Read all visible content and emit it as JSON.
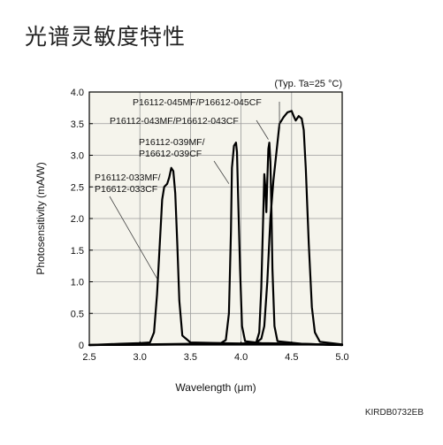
{
  "page": {
    "title": "光谱灵敏度特性",
    "doc_code": "KIRDB0732EB"
  },
  "chart_data": {
    "type": "line",
    "title": "",
    "note": "(Typ. Ta=25 °C)",
    "xlabel": "Wavelength (μm)",
    "ylabel": "Photosensitivity (mA/W)",
    "xlim": [
      2.5,
      5.0
    ],
    "ylim": [
      0,
      4.0
    ],
    "x_ticks": [
      "2.5",
      "3.0",
      "3.5",
      "4.0",
      "4.5",
      "5.0"
    ],
    "y_ticks": [
      "0",
      "0.5",
      "1.0",
      "1.5",
      "2.0",
      "2.5",
      "3.0",
      "3.5",
      "4.0"
    ],
    "grid": true,
    "plot_background": "#f5f4ec",
    "line_color": "#000000",
    "series": [
      {
        "label_lines": [
          "P16112-033MF/",
          "P16612-033CF"
        ],
        "points": [
          [
            2.5,
            0.0
          ],
          [
            2.8,
            0.02
          ],
          [
            3.0,
            0.03
          ],
          [
            3.1,
            0.04
          ],
          [
            3.14,
            0.2
          ],
          [
            3.17,
            0.8
          ],
          [
            3.2,
            1.7
          ],
          [
            3.22,
            2.3
          ],
          [
            3.24,
            2.5
          ],
          [
            3.27,
            2.55
          ],
          [
            3.29,
            2.65
          ],
          [
            3.31,
            2.8
          ],
          [
            3.33,
            2.75
          ],
          [
            3.35,
            2.4
          ],
          [
            3.37,
            1.6
          ],
          [
            3.39,
            0.7
          ],
          [
            3.42,
            0.15
          ],
          [
            3.5,
            0.04
          ],
          [
            3.8,
            0.03
          ],
          [
            4.2,
            0.02
          ],
          [
            4.6,
            0.01
          ],
          [
            5.0,
            0.0
          ]
        ]
      },
      {
        "label_lines": [
          "P16112-039MF/",
          "P16612-039CF"
        ],
        "points": [
          [
            2.5,
            0.0
          ],
          [
            3.0,
            0.01
          ],
          [
            3.5,
            0.02
          ],
          [
            3.8,
            0.03
          ],
          [
            3.85,
            0.08
          ],
          [
            3.88,
            0.5
          ],
          [
            3.9,
            1.8
          ],
          [
            3.91,
            2.8
          ],
          [
            3.93,
            3.15
          ],
          [
            3.95,
            3.2
          ],
          [
            3.96,
            3.05
          ],
          [
            3.97,
            2.4
          ],
          [
            3.99,
            1.2
          ],
          [
            4.01,
            0.3
          ],
          [
            4.04,
            0.06
          ],
          [
            4.2,
            0.03
          ],
          [
            4.6,
            0.02
          ],
          [
            5.0,
            0.0
          ]
        ]
      },
      {
        "label_lines": [
          "P16112-043MF/P16612-043CF"
        ],
        "points": [
          [
            2.5,
            0.0
          ],
          [
            3.5,
            0.01
          ],
          [
            4.0,
            0.02
          ],
          [
            4.15,
            0.04
          ],
          [
            4.18,
            0.2
          ],
          [
            4.2,
            0.9
          ],
          [
            4.22,
            2.1
          ],
          [
            4.23,
            2.7
          ],
          [
            4.24,
            2.5
          ],
          [
            4.25,
            2.1
          ],
          [
            4.26,
            2.6
          ],
          [
            4.27,
            3.1
          ],
          [
            4.28,
            3.2
          ],
          [
            4.29,
            2.9
          ],
          [
            4.3,
            2.2
          ],
          [
            4.31,
            1.2
          ],
          [
            4.33,
            0.3
          ],
          [
            4.36,
            0.06
          ],
          [
            4.6,
            0.02
          ],
          [
            5.0,
            0.0
          ]
        ]
      },
      {
        "label_lines": [
          "P16112-045MF/P16612-045CF"
        ],
        "points": [
          [
            2.5,
            0.0
          ],
          [
            3.5,
            0.01
          ],
          [
            4.0,
            0.02
          ],
          [
            4.15,
            0.04
          ],
          [
            4.2,
            0.1
          ],
          [
            4.23,
            0.3
          ],
          [
            4.26,
            1.0
          ],
          [
            4.29,
            2.0
          ],
          [
            4.32,
            2.6
          ],
          [
            4.36,
            3.2
          ],
          [
            4.38,
            3.5
          ],
          [
            4.4,
            3.55
          ],
          [
            4.42,
            3.6
          ],
          [
            4.46,
            3.68
          ],
          [
            4.5,
            3.7
          ],
          [
            4.52,
            3.62
          ],
          [
            4.54,
            3.55
          ],
          [
            4.57,
            3.62
          ],
          [
            4.6,
            3.58
          ],
          [
            4.62,
            3.4
          ],
          [
            4.64,
            2.8
          ],
          [
            4.67,
            1.6
          ],
          [
            4.7,
            0.6
          ],
          [
            4.73,
            0.2
          ],
          [
            4.78,
            0.05
          ],
          [
            5.0,
            0.01
          ]
        ]
      }
    ]
  }
}
